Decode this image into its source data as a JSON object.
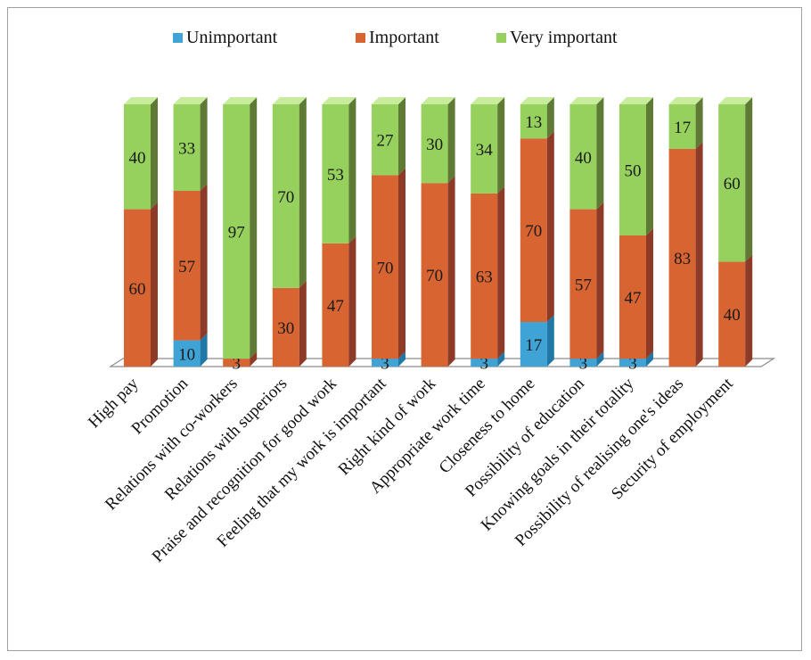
{
  "chart_data": {
    "type": "bar",
    "stacked": true,
    "three_d": true,
    "grid": false,
    "legend_position": "top",
    "categories": [
      "High pay",
      "Promotion",
      "Relations with co-workers",
      "Relations with superiors",
      "Praise and recognition for good work",
      "Feeling that my work is important",
      "Right kind of work",
      "Appropriate work time",
      "Closeness to home",
      "Possibility of education",
      "Knowing goals in their totality",
      "Possibility of realising one's ideas",
      "Security of employment"
    ],
    "series": [
      {
        "name": "Unimportant",
        "color": "#3fa3d6",
        "side": "#1f78a6",
        "top": "#7cc6ea",
        "values": [
          0,
          10,
          0,
          0,
          0,
          3,
          0,
          3,
          17,
          3,
          3,
          0,
          0
        ]
      },
      {
        "name": "Important",
        "color": "#d86432",
        "side": "#8e3a28",
        "top": "#e9926a",
        "values": [
          60,
          57,
          3,
          30,
          47,
          70,
          70,
          63,
          70,
          57,
          47,
          83,
          40
        ]
      },
      {
        "name": "Very important",
        "color": "#96d15e",
        "side": "#5f7a34",
        "top": "#c6ec9c",
        "values": [
          40,
          33,
          97,
          70,
          53,
          27,
          30,
          34,
          13,
          40,
          50,
          17,
          60
        ]
      }
    ],
    "ylim": [
      0,
      100
    ]
  }
}
